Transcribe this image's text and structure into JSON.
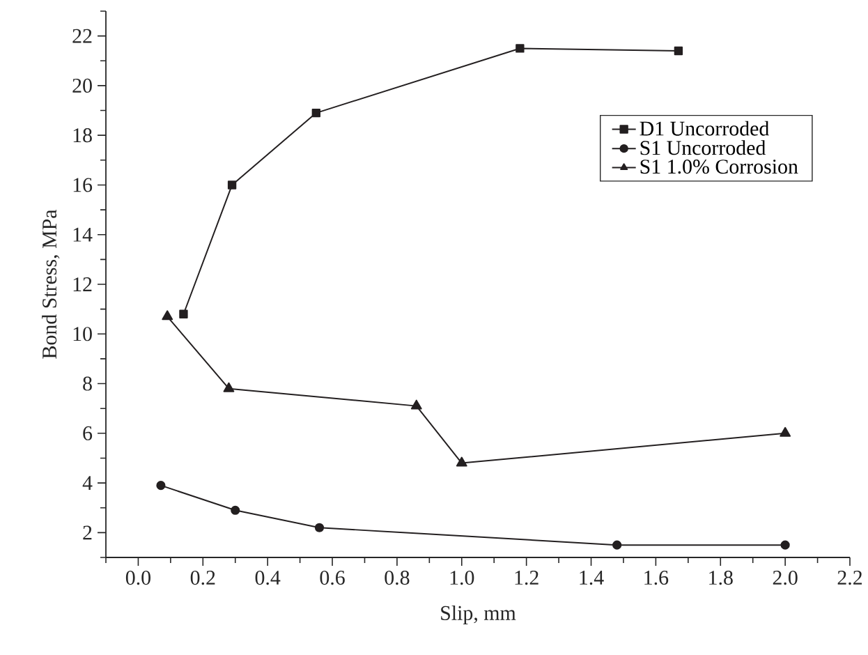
{
  "chart_data": {
    "type": "line",
    "xlabel": "Slip, mm",
    "ylabel": "Bond Stress, MPa",
    "xlim": [
      -0.1,
      2.2
    ],
    "ylim": [
      1,
      23
    ],
    "xticks": [
      {
        "value": -0.1,
        "label": null
      },
      {
        "value": 0,
        "label": "0.0"
      },
      {
        "value": 0.1,
        "label": null
      },
      {
        "value": 0.2,
        "label": "0.2"
      },
      {
        "value": 0.3,
        "label": null
      },
      {
        "value": 0.4,
        "label": "0.4"
      },
      {
        "value": 0.5,
        "label": null
      },
      {
        "value": 0.6,
        "label": "0.6"
      },
      {
        "value": 0.7,
        "label": null
      },
      {
        "value": 0.8,
        "label": "0.8"
      },
      {
        "value": 0.9,
        "label": null
      },
      {
        "value": 1,
        "label": "1.0"
      },
      {
        "value": 1.1,
        "label": null
      },
      {
        "value": 1.2,
        "label": "1.2"
      },
      {
        "value": 1.3,
        "label": null
      },
      {
        "value": 1.4,
        "label": "1.4"
      },
      {
        "value": 1.5,
        "label": null
      },
      {
        "value": 1.6,
        "label": "1.6"
      },
      {
        "value": 1.7,
        "label": null
      },
      {
        "value": 1.8,
        "label": "1.8"
      },
      {
        "value": 1.9,
        "label": null
      },
      {
        "value": 2,
        "label": "2.0"
      },
      {
        "value": 2.1,
        "label": null
      },
      {
        "value": 2.2,
        "label": "2.2"
      }
    ],
    "yticks": [
      {
        "value": 1,
        "label": null
      },
      2,
      {
        "value": 3,
        "label": null
      },
      4,
      {
        "value": 5,
        "label": null
      },
      6,
      {
        "value": 7,
        "label": null
      },
      8,
      {
        "value": 9,
        "label": null
      },
      10,
      {
        "value": 11,
        "label": null
      },
      12,
      {
        "value": 13,
        "label": null
      },
      14,
      {
        "value": 15,
        "label": null
      },
      16,
      {
        "value": 17,
        "label": null
      },
      18,
      {
        "value": 19,
        "label": null
      },
      20,
      {
        "value": 21,
        "label": null
      },
      22,
      {
        "value": 23,
        "label": null
      }
    ],
    "grid": false,
    "legend": "top right",
    "line_style": "solid",
    "series": [
      {
        "name": "D1 Uncorroded",
        "color": "#231f20",
        "marker": "square",
        "x": [
          0.14,
          0.29,
          0.55,
          1.18,
          1.67
        ],
        "values": [
          10.8,
          16.0,
          18.9,
          21.5,
          21.4
        ]
      },
      {
        "name": "S1 Uncorroded",
        "color": "#231f20",
        "marker": "circle",
        "x": [
          0.07,
          0.3,
          0.56,
          1.48,
          2.0
        ],
        "values": [
          3.9,
          2.9,
          2.2,
          1.5,
          1.5
        ]
      },
      {
        "name": "S1 1.0% Corrosion",
        "color": "#231f20",
        "marker": "triangle",
        "x": [
          0.09,
          0.28,
          0.86,
          1.0,
          2.0
        ],
        "values": [
          10.7,
          7.8,
          7.1,
          4.8,
          6.0
        ]
      }
    ]
  }
}
